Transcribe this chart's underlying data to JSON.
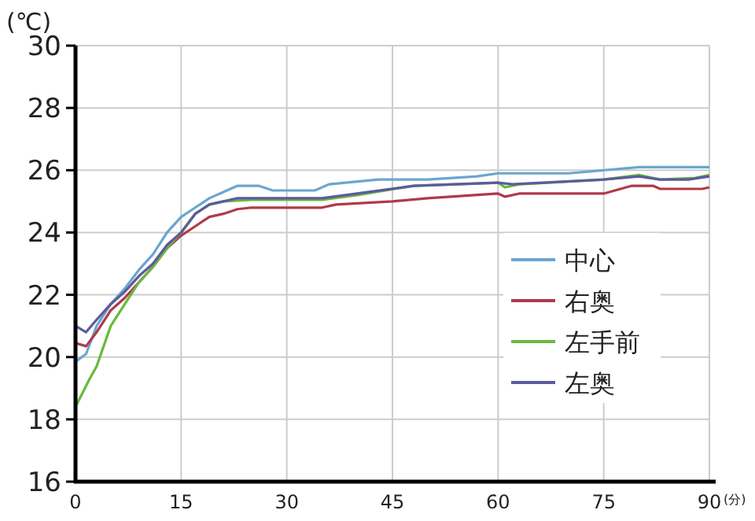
{
  "chart_data": {
    "type": "line",
    "ylabel": "(℃)",
    "xlabel": "(分)",
    "xlim": [
      0,
      90
    ],
    "xticks": [
      0,
      15,
      30,
      45,
      60,
      75,
      90
    ],
    "ylim": [
      16,
      30
    ],
    "yticks": [
      16,
      18,
      20,
      22,
      24,
      26,
      28,
      30
    ],
    "grid": true,
    "legend": "right",
    "marker": "none",
    "line_style": "solid",
    "series": [
      {
        "name": "中心",
        "color": "#6aa6cf",
        "x": [
          0,
          1.5,
          3,
          5,
          7,
          9,
          11,
          13,
          15,
          17,
          19,
          21,
          23,
          26,
          28,
          34,
          36,
          43,
          50,
          57,
          60,
          70,
          75,
          80,
          90
        ],
        "values": [
          19.85,
          20.1,
          21.0,
          21.7,
          22.2,
          22.8,
          23.3,
          24.0,
          24.5,
          24.8,
          25.1,
          25.3,
          25.5,
          25.5,
          25.35,
          25.35,
          25.55,
          25.7,
          25.7,
          25.8,
          25.9,
          25.9,
          26.0,
          26.1,
          26.1
        ]
      },
      {
        "name": "右奥",
        "color": "#b0394a",
        "x": [
          0,
          1.5,
          3,
          5,
          7,
          9,
          11,
          13,
          15,
          17,
          19,
          21,
          23,
          25,
          30,
          35,
          37,
          45,
          50,
          60,
          61,
          63,
          75,
          79,
          82,
          83,
          89,
          90
        ],
        "values": [
          20.45,
          20.35,
          20.8,
          21.5,
          21.9,
          22.4,
          22.9,
          23.5,
          23.9,
          24.2,
          24.5,
          24.6,
          24.75,
          24.8,
          24.8,
          24.8,
          24.9,
          25.0,
          25.1,
          25.25,
          25.15,
          25.25,
          25.25,
          25.5,
          25.5,
          25.4,
          25.4,
          25.45
        ]
      },
      {
        "name": "左手前",
        "color": "#6ab93a",
        "x": [
          0,
          2,
          3,
          5,
          7,
          9,
          11,
          13,
          15,
          17,
          19,
          21,
          25,
          30,
          35,
          40,
          48,
          60,
          61,
          63,
          75,
          80,
          83,
          88,
          90
        ],
        "values": [
          18.4,
          19.3,
          19.7,
          21.0,
          21.7,
          22.4,
          22.9,
          23.5,
          24.0,
          24.6,
          24.9,
          25.0,
          25.05,
          25.05,
          25.05,
          25.2,
          25.5,
          25.6,
          25.45,
          25.55,
          25.7,
          25.85,
          25.7,
          25.75,
          25.85
        ]
      },
      {
        "name": "左奥",
        "color": "#5b5b9e",
        "x": [
          0,
          1.5,
          3,
          5,
          7,
          9,
          11,
          13,
          15,
          17,
          19,
          21,
          23,
          30,
          35,
          40,
          48,
          60,
          62,
          75,
          80,
          83,
          87,
          90
        ],
        "values": [
          21.0,
          20.8,
          21.2,
          21.7,
          22.1,
          22.6,
          23.0,
          23.6,
          24.0,
          24.6,
          24.9,
          25.0,
          25.1,
          25.1,
          25.1,
          25.25,
          25.5,
          25.6,
          25.55,
          25.7,
          25.8,
          25.7,
          25.7,
          25.8
        ]
      }
    ]
  }
}
